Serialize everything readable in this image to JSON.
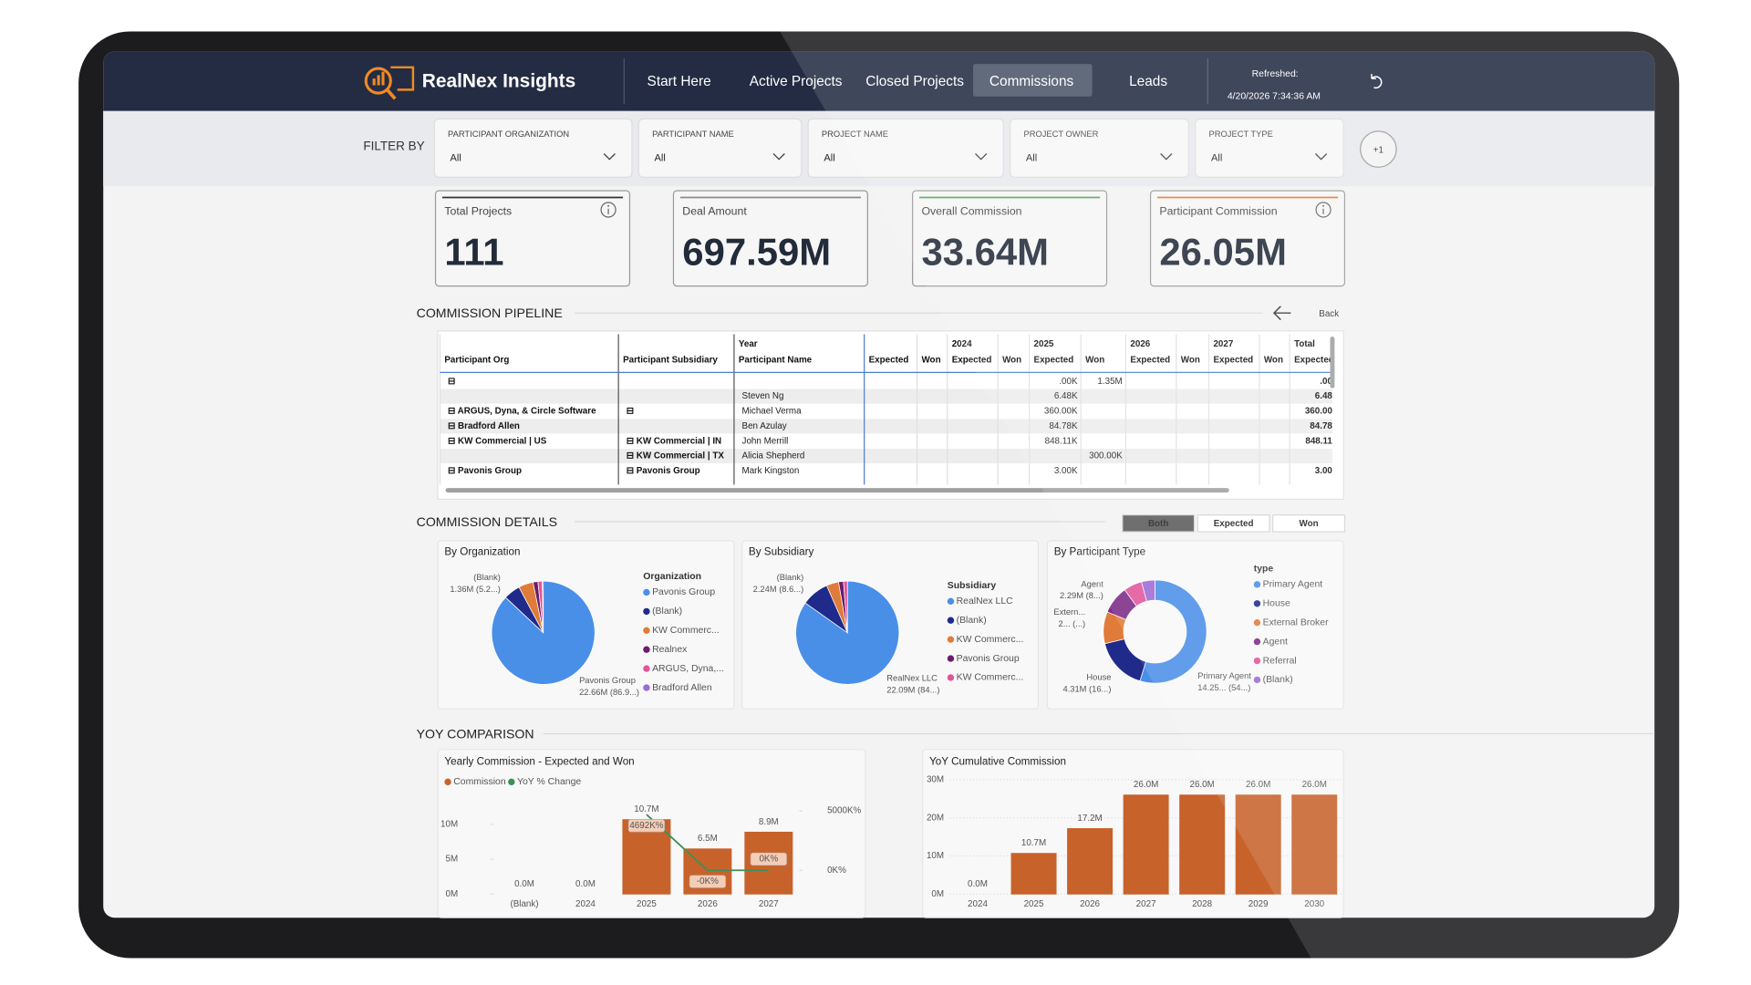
{
  "header": {
    "brand": "RealNex Insights",
    "nav": [
      {
        "label": "Start Here"
      },
      {
        "label": "Active Projects"
      },
      {
        "label": "Closed Projects"
      },
      {
        "label": "Commissions",
        "active": true
      },
      {
        "label": "Leads"
      }
    ],
    "refreshed_label": "Refreshed:",
    "refreshed": "4/20/2026 7:34:36 AM"
  },
  "filters": {
    "label": "FILTER BY",
    "items": [
      {
        "label": "PARTICIPANT ORGANIZATION",
        "value": "All"
      },
      {
        "label": "PARTICIPANT NAME",
        "value": "All"
      },
      {
        "label": "PROJECT NAME",
        "value": "All"
      },
      {
        "label": "PROJECT OWNER",
        "value": "All"
      },
      {
        "label": "PROJECT TYPE",
        "value": "All"
      }
    ],
    "more": "+1"
  },
  "kpis": [
    {
      "label": "Total Projects",
      "value": "111",
      "color": "#333333",
      "info": true
    },
    {
      "label": "Deal Amount",
      "value": "697.59M",
      "color": "#8a8a8a"
    },
    {
      "label": "Overall Commission",
      "value": "33.64M",
      "color": "#5aa469"
    },
    {
      "label": "Participant Commission",
      "value": "26.05M",
      "color": "#e07b39",
      "info": true
    }
  ],
  "pipeline": {
    "title": "COMMISSION PIPELINE",
    "back": "Back",
    "header": [
      [
        null,
        null,
        "Year",
        null,
        null,
        "2024",
        null,
        "2025",
        null,
        "2026",
        null,
        "2027",
        null,
        "Total"
      ],
      [
        "Participant Org",
        "Participant Subsidiary",
        "Participant Name",
        "Expected",
        "Won",
        "Expected",
        "Won",
        "Expected",
        "Won",
        "Expected",
        "Won",
        "Expected",
        "Won",
        "Expected"
      ]
    ],
    "rows": [
      [
        "⊟",
        null,
        null,
        null,
        null,
        null,
        null,
        ".00K",
        "1.35M",
        null,
        null,
        null,
        null,
        ".00"
      ],
      [
        null,
        null,
        "Steven Ng",
        null,
        null,
        null,
        null,
        "6.48K",
        null,
        null,
        null,
        null,
        null,
        "6.48"
      ],
      [
        "⊟ ARGUS, Dyna, & Circle Software",
        "⊟",
        "Michael Verma",
        null,
        null,
        null,
        null,
        "360.00K",
        null,
        null,
        null,
        null,
        null,
        "360.00"
      ],
      [
        "⊟ Bradford Allen",
        null,
        "Ben Azulay",
        null,
        null,
        null,
        null,
        "84.78K",
        null,
        null,
        null,
        null,
        null,
        "84.78"
      ],
      [
        "⊟ KW Commercial | US",
        "⊟ KW Commercial | IN",
        "John Merrill",
        null,
        null,
        null,
        null,
        "848.11K",
        null,
        null,
        null,
        null,
        null,
        "848.11"
      ],
      [
        null,
        "⊟ KW Commercial | TX",
        "Alicia Shepherd",
        null,
        null,
        null,
        null,
        null,
        "300.00K",
        null,
        null,
        null,
        null,
        null
      ],
      [
        "⊟ Pavonis Group",
        "⊟ Pavonis Group",
        "Mark Kingston",
        null,
        null,
        null,
        null,
        "3.00K",
        null,
        null,
        null,
        null,
        null,
        "3.00"
      ]
    ]
  },
  "details": {
    "title": "COMMISSION DETAILS",
    "toggle": [
      {
        "label": "Both",
        "active": true
      },
      {
        "label": "Expected"
      },
      {
        "label": "Won"
      }
    ],
    "charts": [
      {
        "type": "pie",
        "title": "By Organization",
        "legend_title": "Organization",
        "categories": [
          "Pavonis Group",
          "(Blank)",
          "KW Commerc...",
          "Realnex",
          "ARGUS, Dyna,...",
          "Bradford Allen"
        ],
        "values": [
          22.66,
          1.36,
          1.2,
          0.4,
          0.35,
          0.08
        ],
        "value_labels": [
          "22.66M (86.9...)",
          "1.36M (5.2...)",
          null,
          null,
          null,
          null
        ],
        "colors": [
          "#4a8fe7",
          "#1f2a8a",
          "#e07b39",
          "#6b1d6b",
          "#e0569a",
          "#9b6ad6"
        ]
      },
      {
        "type": "pie",
        "title": "By Subsidiary",
        "legend_title": "Subsidiary",
        "categories": [
          "RealNex LLC",
          "(Blank)",
          "KW Commerc...",
          "Pavonis Group",
          "KW Commerc..."
        ],
        "values": [
          22.09,
          2.24,
          1.0,
          0.4,
          0.32
        ],
        "value_labels": [
          "22.09M (84...)",
          "2.24M (8.6...)",
          null,
          null,
          null
        ],
        "colors": [
          "#4a8fe7",
          "#1f2a8a",
          "#e07b39",
          "#6b1d6b",
          "#e0569a"
        ]
      },
      {
        "type": "donut",
        "title": "By Participant Type",
        "legend_title": "type",
        "categories": [
          "Primary Agent",
          "House",
          "External Broker",
          "Agent",
          "Referral",
          "(Blank)"
        ],
        "point_names": [
          "Primary Agent",
          "House",
          "Extern...",
          "Agent",
          null,
          null
        ],
        "values": [
          14.25,
          4.31,
          2.6,
          2.29,
          1.5,
          1.1
        ],
        "value_labels": [
          "14.25... (54...)",
          "4.31M (16...)",
          "2... (...)",
          "2.29M (8...)",
          null,
          null
        ],
        "colors": [
          "#4a8fe7",
          "#1f2a8a",
          "#e07b39",
          "#7b2a86",
          "#e0569a",
          "#9b6ad6"
        ]
      }
    ]
  },
  "yoy": {
    "title": "YOY COMPARISON",
    "charts": [
      {
        "type": "bar_line",
        "title": "Yearly Commission - Expected and Won",
        "categories": [
          "(Blank)",
          "2024",
          "2025",
          "2026",
          "2027"
        ],
        "series": [
          {
            "name": "Commission",
            "type": "bar",
            "color": "#c8622b",
            "values": [
              0,
              0,
              10.7,
              6.5,
              8.9
            ],
            "value_labels": [
              "0.0M",
              "0.0M",
              "10.7M",
              "6.5M",
              "8.9M"
            ]
          },
          {
            "name": "YoY % Change",
            "type": "line",
            "axis": "y2",
            "color": "#3f8f5a",
            "values": [
              null,
              null,
              4692,
              0,
              0
            ],
            "value_labels": [
              null,
              null,
              "4692K%",
              "-0K%",
              "0K%"
            ]
          }
        ],
        "ylim": [
          0,
          14
        ],
        "yticks": [
          {
            "value": 0,
            "label": "0M"
          },
          {
            "value": 5,
            "label": "5M"
          },
          {
            "value": 10,
            "label": "10M"
          }
        ],
        "y2lim": [
          -2000,
          6200
        ],
        "y2ticks": [
          {
            "value": 0,
            "label": "0K%"
          },
          {
            "value": 5000,
            "label": "5000K%"
          }
        ],
        "grid": false
      },
      {
        "type": "bar",
        "title": "YoY Cumulative Commission",
        "categories": [
          "2024",
          "2025",
          "2026",
          "2027",
          "2028",
          "2029",
          "2030"
        ],
        "series": [
          {
            "type": "bar",
            "color": "#c8622b",
            "values": [
              0,
              10.7,
              17.2,
              26.0,
              26.0,
              26.0,
              26.0
            ],
            "value_labels": [
              "0.0M",
              "10.7M",
              "17.2M",
              "26.0M",
              "26.0M",
              "26.0M",
              "26.0M"
            ]
          }
        ],
        "ylim": [
          0,
          30
        ],
        "yticks": [
          {
            "value": 0,
            "label": "0M"
          },
          {
            "value": 10,
            "label": "10M"
          },
          {
            "value": 20,
            "label": "20M"
          },
          {
            "value": 30,
            "label": "30M"
          }
        ],
        "grid": true
      }
    ]
  }
}
